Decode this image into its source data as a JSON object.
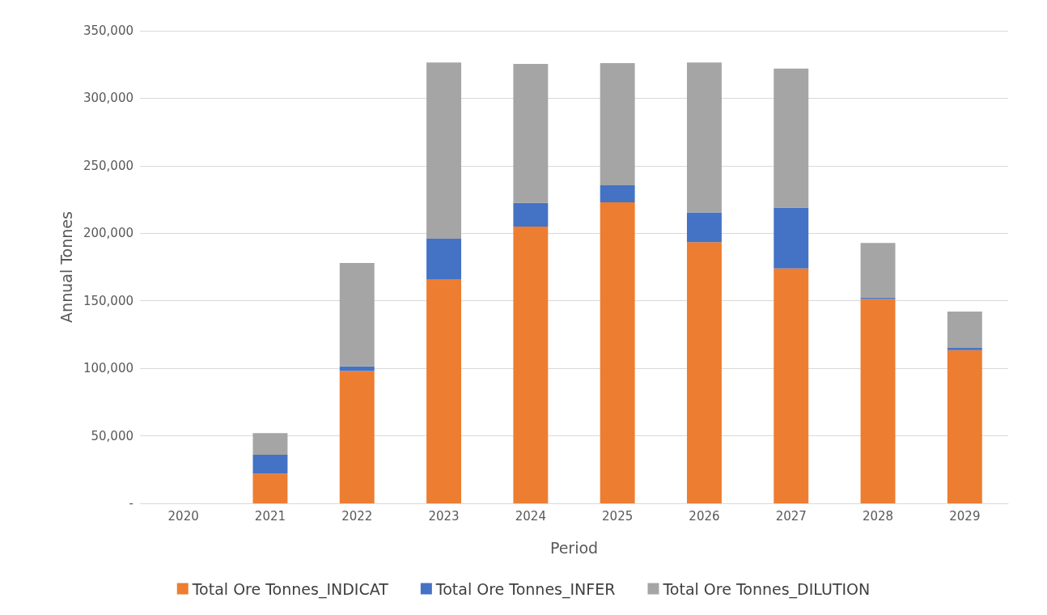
{
  "chart_data": {
    "type": "bar",
    "stacked": true,
    "xlabel": "Period",
    "ylabel": "Annual Tonnes",
    "categories": [
      "2020",
      "2021",
      "2022",
      "2023",
      "2024",
      "2025",
      "2026",
      "2027",
      "2028",
      "2029"
    ],
    "series": [
      {
        "name": "Total Ore Tonnes_INDICAT",
        "color": "#ed7d31",
        "values": [
          0,
          22000,
          98000,
          166000,
          205000,
          223000,
          193500,
          174000,
          151300,
          113400
        ]
      },
      {
        "name": "Total Ore Tonnes_INFER",
        "color": "#4472c4",
        "values": [
          0,
          14000,
          3500,
          30000,
          17500,
          12500,
          22000,
          45000,
          1200,
          1700
        ]
      },
      {
        "name": "Total Ore Tonnes_DILUTION",
        "color": "#a5a5a5",
        "values": [
          0,
          16000,
          76500,
          130500,
          103000,
          90500,
          111000,
          103000,
          40300,
          27000
        ]
      }
    ],
    "ylim": [
      0,
      350000
    ],
    "yticks": [
      {
        "value": 0,
        "label": "-"
      },
      {
        "value": 50000,
        "label": "50,000"
      },
      {
        "value": 100000,
        "label": "100,000"
      },
      {
        "value": 150000,
        "label": "150,000"
      },
      {
        "value": 200000,
        "label": "200,000"
      },
      {
        "value": 250000,
        "label": "250,000"
      },
      {
        "value": 300000,
        "label": "300,000"
      },
      {
        "value": 350000,
        "label": "350,000"
      }
    ],
    "grid": "y",
    "legend": "bottom"
  }
}
